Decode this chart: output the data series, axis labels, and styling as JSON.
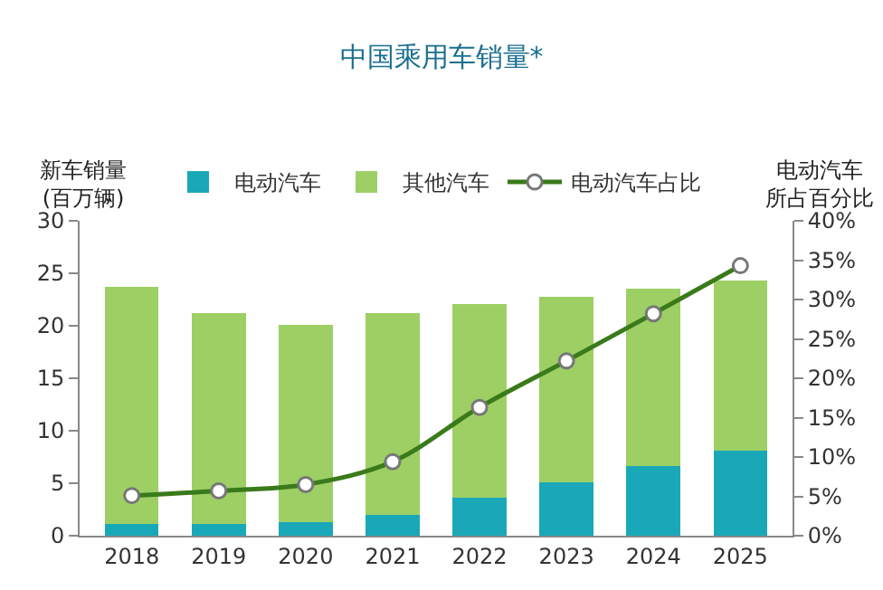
{
  "chart_data": {
    "type": "bar",
    "title": "中国乘用车销量*",
    "ylabel": "新车销量(百万辆)",
    "y2label": "电动汽车所占百分比",
    "categories": [
      "2018",
      "2019",
      "2020",
      "2021",
      "2022",
      "2023",
      "2024",
      "2025"
    ],
    "stacked": true,
    "series": [
      {
        "name": "电动汽车",
        "color": "#1aa8b8",
        "values": [
          1.1,
          1.1,
          1.3,
          2.0,
          3.6,
          5.1,
          6.6,
          8.1
        ]
      },
      {
        "name": "其他汽车",
        "color": "#9dcf65",
        "values": [
          22.6,
          20.1,
          18.8,
          19.2,
          18.5,
          17.7,
          16.9,
          16.2
        ]
      },
      {
        "name": "电动汽车占比",
        "type": "line",
        "axis": "y2",
        "color": "#3a7a1a",
        "marker": "circle",
        "values": [
          5.1,
          5.7,
          6.5,
          9.4,
          16.3,
          22.2,
          28.2,
          34.3
        ]
      }
    ],
    "ylim": [
      0,
      30
    ],
    "yticks": [
      0,
      5,
      10,
      15,
      20,
      25,
      30
    ],
    "y2lim": [
      0,
      40
    ],
    "y2ticks": [
      {
        "value": 0,
        "label": "0%"
      },
      {
        "value": 5,
        "label": "5%"
      },
      {
        "value": 10,
        "label": "10%"
      },
      {
        "value": 15,
        "label": "15%"
      },
      {
        "value": 20,
        "label": "20%"
      },
      {
        "value": 25,
        "label": "25%"
      },
      {
        "value": 30,
        "label": "30%"
      },
      {
        "value": 35,
        "label": "35%"
      },
      {
        "value": 40,
        "label": "40%"
      }
    ],
    "legend": "top"
  }
}
